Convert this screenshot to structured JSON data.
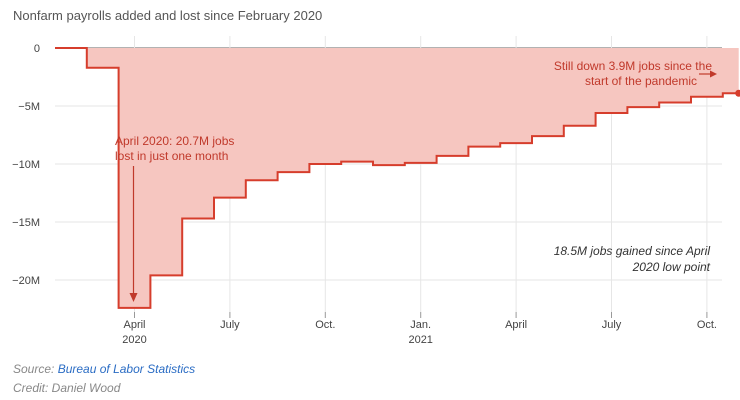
{
  "chart_data": {
    "type": "area",
    "title": "Nonfarm payrolls added and lost since February 2020",
    "xlabel": "",
    "ylabel": "",
    "ylim": [
      -23,
      1
    ],
    "yticks": [
      {
        "value": 0,
        "label": "0"
      },
      {
        "value": -5,
        "label": "−5M"
      },
      {
        "value": -10,
        "label": "−10M"
      },
      {
        "value": -15,
        "label": "−15M"
      },
      {
        "value": -20,
        "label": "−20M"
      }
    ],
    "xticks": [
      {
        "month_index": 2,
        "label": "April",
        "sub": "2020"
      },
      {
        "month_index": 5,
        "label": "July",
        "sub": ""
      },
      {
        "month_index": 8,
        "label": "Oct.",
        "sub": ""
      },
      {
        "month_index": 11,
        "label": "Jan.",
        "sub": "2021"
      },
      {
        "month_index": 14,
        "label": "April",
        "sub": ""
      },
      {
        "month_index": 17,
        "label": "July",
        "sub": ""
      },
      {
        "month_index": 20,
        "label": "Oct.",
        "sub": ""
      }
    ],
    "series": [
      {
        "months": [
          "Feb 2020",
          "Mar 2020",
          "Apr 2020",
          "May 2020",
          "Jun 2020",
          "Jul 2020",
          "Aug 2020",
          "Sep 2020",
          "Oct 2020",
          "Nov 2020",
          "Dec 2020",
          "Jan 2021",
          "Feb 2021",
          "Mar 2021",
          "Apr 2021",
          "May 2021",
          "Jun 2021",
          "Jul 2021",
          "Aug 2021",
          "Sep 2021",
          "Oct 2021",
          "Nov 2021"
        ],
        "values": [
          0,
          -1.7,
          -22.4,
          -19.6,
          -14.7,
          -12.9,
          -11.4,
          -10.7,
          -10.0,
          -9.8,
          -10.1,
          -9.9,
          -9.3,
          -8.5,
          -8.2,
          -7.6,
          -6.7,
          -5.6,
          -5.1,
          -4.7,
          -4.2,
          -3.9
        ]
      }
    ],
    "annotations": {
      "april_line1": "April 2020: 20.7M jobs",
      "april_line2": "lost in just one month",
      "down_line1": "Still down 3.9M jobs since the",
      "down_line2": "start of the pandemic",
      "gained_line1": "18.5M jobs gained since April",
      "gained_line2": "2020 low point"
    },
    "colors": {
      "fill": "#f6c6c0",
      "line": "#d63d2c",
      "annotation": "#c0392b",
      "grid": "#e6e6e6"
    }
  },
  "footer": {
    "source_prefix": "Source: ",
    "source_link": "Bureau of Labor Statistics",
    "credit": "Credit: Daniel Wood"
  }
}
